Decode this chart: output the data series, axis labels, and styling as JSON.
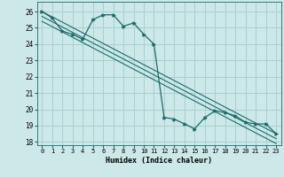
{
  "xlabel": "Humidex (Indice chaleur)",
  "background_color": "#cce8e8",
  "grid_color": "#aacfcf",
  "line_color": "#1a6b6b",
  "xlim": [
    -0.5,
    23.5
  ],
  "ylim": [
    17.8,
    26.6
  ],
  "yticks": [
    18,
    19,
    20,
    21,
    22,
    23,
    24,
    25,
    26
  ],
  "xticks": [
    0,
    1,
    2,
    3,
    4,
    5,
    6,
    7,
    8,
    9,
    10,
    11,
    12,
    13,
    14,
    15,
    16,
    17,
    18,
    19,
    20,
    21,
    22,
    23
  ],
  "series1_x": [
    0,
    1,
    2,
    3,
    4,
    5,
    6,
    7,
    8,
    9,
    10,
    11,
    12,
    13,
    14,
    15,
    16,
    17,
    18,
    19,
    20,
    21,
    22,
    23
  ],
  "series1_y": [
    26.0,
    25.6,
    24.8,
    24.6,
    24.3,
    25.5,
    25.8,
    25.8,
    25.1,
    25.3,
    24.6,
    24.0,
    19.5,
    19.4,
    19.1,
    18.8,
    19.5,
    19.9,
    19.8,
    19.6,
    19.2,
    19.1,
    19.1,
    18.5
  ],
  "line2_x0": 0,
  "line2_y0": 26.0,
  "line2_x1": 23,
  "line2_y1": 18.5,
  "line3_x0": 0,
  "line3_y0": 25.7,
  "line3_x1": 23,
  "line3_y1": 18.2,
  "line4_x0": 0,
  "line4_y0": 25.4,
  "line4_x1": 23,
  "line4_y1": 17.9
}
